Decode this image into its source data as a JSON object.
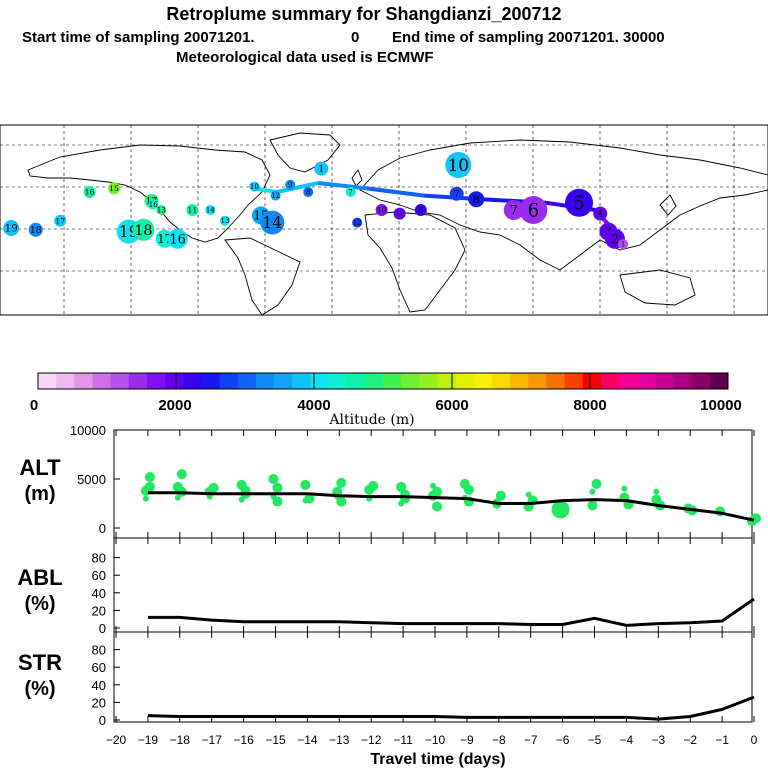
{
  "header": {
    "title": "Retroplume summary for Shangdianzi_200712",
    "line2_start": "Start time of sampling 20071201.",
    "line2_zero": "0",
    "line2_end": "End time of sampling 20071201. 30000",
    "line3": "Meteorological data used is ECMWF"
  },
  "colorbar": {
    "tick_labels": [
      "0",
      "2000",
      "4000",
      "6000",
      "8000",
      "10000"
    ],
    "label": "Altitude (m)",
    "colors": [
      "#f6d8f6",
      "#eeb8ee",
      "#e296e8",
      "#d070e8",
      "#b450ee",
      "#9a2cf2",
      "#8010f2",
      "#6000ee",
      "#3800ee",
      "#1818ee",
      "#1040f4",
      "#1064f8",
      "#1088f8",
      "#10a4f8",
      "#10c4f8",
      "#10e0f0",
      "#10f0d0",
      "#10f0a8",
      "#20f080",
      "#40f050",
      "#70f030",
      "#98f020",
      "#c0f010",
      "#e0f000",
      "#f8f000",
      "#f8d800",
      "#f8b800",
      "#f89800",
      "#f87000",
      "#f84000",
      "#f80000",
      "#f80060",
      "#f00090",
      "#e000a0",
      "#c80090",
      "#a80080",
      "#880068",
      "#600050"
    ]
  },
  "map": {
    "track_points": [
      {
        "label": "19",
        "lon": -158,
        "lat": 20,
        "alt": 3800,
        "r": 8
      },
      {
        "label": "18",
        "lon": -143,
        "lat": 19,
        "alt": 3300,
        "r": 7
      },
      {
        "label": "17",
        "lon": -128,
        "lat": 24,
        "alt": 3700,
        "r": 6
      },
      {
        "label": "16",
        "lon": -110,
        "lat": 40,
        "alt": 4600,
        "r": 6
      },
      {
        "label": "15",
        "lon": -95,
        "lat": 42,
        "alt": 5500,
        "r": 6
      },
      {
        "label": "19",
        "lon": -86,
        "lat": 18,
        "alt": 4200,
        "r": 12
      },
      {
        "label": "18",
        "lon": -77,
        "lat": 19,
        "alt": 4500,
        "r": 11
      },
      {
        "label": "17",
        "lon": -72,
        "lat": 35,
        "alt": 4800,
        "r": 7
      },
      {
        "label": "16",
        "lon": -71,
        "lat": 33,
        "alt": 4300,
        "r": 5
      },
      {
        "label": "13",
        "lon": -66,
        "lat": 30,
        "alt": 4900,
        "r": 5
      },
      {
        "label": "17",
        "lon": -64,
        "lat": 14,
        "alt": 4300,
        "r": 9
      },
      {
        "label": "16",
        "lon": -56,
        "lat": 14,
        "alt": 4100,
        "r": 10
      },
      {
        "label": "11",
        "lon": -47,
        "lat": 30,
        "alt": 4700,
        "r": 6
      },
      {
        "label": "14",
        "lon": -36,
        "lat": 30,
        "alt": 4000,
        "r": 5
      },
      {
        "label": "13",
        "lon": -27,
        "lat": 24,
        "alt": 4000,
        "r": 5
      },
      {
        "label": "15",
        "lon": -5,
        "lat": 27,
        "alt": 3600,
        "r": 9
      },
      {
        "label": "14",
        "lon": 2,
        "lat": 23,
        "alt": 3300,
        "r": 12
      },
      {
        "label": "12",
        "lon": 4,
        "lat": 38,
        "alt": 3600,
        "r": 5
      },
      {
        "label": "10",
        "lon": -9,
        "lat": 43,
        "alt": 3900,
        "r": 5
      },
      {
        "label": "9",
        "lon": 13,
        "lat": 44,
        "alt": 3300,
        "r": 5
      },
      {
        "label": "8",
        "lon": 24,
        "lat": 40,
        "alt": 2900,
        "r": 5
      },
      {
        "label": "1",
        "lon": 32,
        "lat": 53,
        "alt": 3700,
        "r": 7
      },
      {
        "label": "7",
        "lon": 50,
        "lat": 40,
        "alt": 4400,
        "r": 5
      },
      {
        "label": "12",
        "lon": 54,
        "lat": 23,
        "alt": 2700,
        "r": 5
      },
      {
        "label": "10",
        "lon": 69,
        "lat": 30,
        "alt": 1800,
        "r": 6
      },
      {
        "label": "9",
        "lon": 80,
        "lat": 28,
        "alt": 1900,
        "r": 6
      },
      {
        "label": "8",
        "lon": 93,
        "lat": 30,
        "alt": 2200,
        "r": 6
      },
      {
        "label": "10",
        "lon": 116,
        "lat": 55,
        "alt": 3800,
        "r": 13
      },
      {
        "label": "7",
        "lon": 115,
        "lat": 39,
        "alt": 2700,
        "r": 7
      },
      {
        "label": "8",
        "lon": 127,
        "lat": 36,
        "alt": 2500,
        "r": 8
      },
      {
        "label": "7",
        "lon": 150,
        "lat": 30,
        "alt": 1400,
        "r": 10
      },
      {
        "label": "6",
        "lon": 162,
        "lat": 30,
        "alt": 1400,
        "r": 14
      },
      {
        "label": "5",
        "lon": 190,
        "lat": 34,
        "alt": 2200,
        "r": 14
      },
      {
        "label": "4",
        "lon": 203,
        "lat": 28,
        "alt": 2000,
        "r": 7
      },
      {
        "label": "3",
        "lon": 208,
        "lat": 18,
        "alt": 2000,
        "r": 9
      },
      {
        "label": "2",
        "lon": 212,
        "lat": 14,
        "alt": 2100,
        "r": 10
      },
      {
        "label": "1",
        "lon": 217,
        "lat": 11,
        "alt": 1300,
        "r": 5
      }
    ]
  },
  "panels": {
    "alt": {
      "label_top": "ALT",
      "label_bottom": "(m)",
      "yticks": [
        "10000",
        "5000",
        "0"
      ],
      "ymin": 0,
      "ymax": 10000
    },
    "abl": {
      "label_top": "ABL",
      "label_bottom": "(%)",
      "yticks": [
        "80",
        "60",
        "40",
        "20",
        "0"
      ],
      "ymin": 0,
      "ymax": 100
    },
    "str": {
      "label_top": "STR",
      "label_bottom": "(%)",
      "yticks": [
        "80",
        "60",
        "40",
        "20",
        "0"
      ],
      "ymin": 0,
      "ymax": 100
    },
    "xticks": [
      "−20",
      "−19",
      "−18",
      "−17",
      "−16",
      "−15",
      "−14",
      "−13",
      "−12",
      "−11",
      "−10",
      "−9",
      "−8",
      "−7",
      "−6",
      "−5",
      "−4",
      "−3",
      "−2",
      "−1",
      "0"
    ],
    "xlabel": "Travel time (days)"
  },
  "chart_data": {
    "type": "line",
    "title": "Retroplume summary for Shangdianzi_200712",
    "xlabel": "Travel time (days)",
    "xlim": [
      -20,
      0
    ],
    "series": [
      {
        "name": "ALT (m)",
        "x": [
          -19,
          -18,
          -17,
          -16,
          -15,
          -14,
          -13,
          -12,
          -11,
          -10,
          -9,
          -8,
          -7,
          -6,
          -5,
          -4,
          -3,
          -2,
          -1,
          0
        ],
        "values": [
          3600,
          3600,
          3500,
          3500,
          3500,
          3500,
          3300,
          3200,
          3200,
          3100,
          3000,
          2500,
          2500,
          2800,
          2900,
          2800,
          2300,
          1900,
          1500,
          800
        ],
        "ylim": [
          0,
          10000
        ]
      },
      {
        "name": "ABL (%)",
        "x": [
          -19,
          -18,
          -17,
          -16,
          -15,
          -14,
          -13,
          -12,
          -11,
          -10,
          -9,
          -8,
          -7,
          -6,
          -5,
          -4,
          -3,
          -2,
          -1,
          0
        ],
        "values": [
          12,
          12,
          9,
          7,
          7,
          7,
          7,
          6,
          5,
          5,
          5,
          5,
          4,
          4,
          11,
          3,
          5,
          6,
          8,
          33
        ],
        "ylim": [
          0,
          100
        ]
      },
      {
        "name": "STR (%)",
        "x": [
          -19,
          -18,
          -17,
          -16,
          -15,
          -14,
          -13,
          -12,
          -11,
          -10,
          -9,
          -8,
          -7,
          -6,
          -5,
          -4,
          -3,
          -2,
          -1,
          0
        ],
        "values": [
          5,
          4,
          4,
          4,
          4,
          4,
          4,
          4,
          4,
          4,
          3,
          3,
          3,
          3,
          3,
          3,
          1,
          4,
          12,
          26
        ],
        "ylim": [
          0,
          100
        ]
      }
    ],
    "alt_dots": [
      {
        "x": -19,
        "values": [
          3800,
          5200,
          3000,
          4200
        ]
      },
      {
        "x": -18,
        "values": [
          4200,
          5500,
          3100,
          3700
        ]
      },
      {
        "x": -17,
        "values": [
          3700,
          4100,
          3200
        ]
      },
      {
        "x": -16,
        "values": [
          4400,
          3500,
          2900,
          3800
        ]
      },
      {
        "x": -15,
        "values": [
          5000,
          4100,
          3200,
          2700
        ]
      },
      {
        "x": -14,
        "values": [
          4400,
          3000,
          2800
        ]
      },
      {
        "x": -13,
        "values": [
          3700,
          4600,
          3200,
          2700
        ]
      },
      {
        "x": -12,
        "values": [
          3900,
          4300,
          3000
        ]
      },
      {
        "x": -11,
        "values": [
          4200,
          3400,
          2500,
          3000
        ]
      },
      {
        "x": -10,
        "values": [
          3300,
          3700,
          4300,
          2200
        ]
      },
      {
        "x": -9,
        "values": [
          4500,
          2700,
          3100,
          3900
        ]
      },
      {
        "x": -8,
        "values": [
          2500,
          3300
        ]
      },
      {
        "x": -7,
        "values": [
          2200,
          2800,
          3400
        ]
      },
      {
        "x": -6,
        "values": [
          1900
        ]
      },
      {
        "x": -5,
        "values": [
          2300,
          4500,
          3700
        ]
      },
      {
        "x": -4,
        "values": [
          3100,
          2400,
          4000
        ]
      },
      {
        "x": -3,
        "values": [
          2900,
          2300,
          3700
        ]
      },
      {
        "x": -2,
        "values": [
          2000,
          1800
        ]
      },
      {
        "x": -1,
        "values": [
          1700
        ]
      },
      {
        "x": 0,
        "values": [
          700,
          1000
        ]
      }
    ]
  }
}
